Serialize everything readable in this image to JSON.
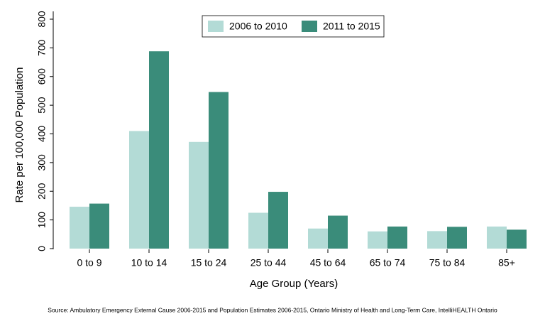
{
  "chart_data": {
    "type": "bar",
    "x_label": "Age Group (Years)",
    "y_label": "Rate per 100,000 Population",
    "source": "Source: Ambulatory Emergency External Cause 2006-2015 and Population Estimates 2006-2015, Ontario Ministry of Health and Long-Term Care, IntelliHEALTH Ontario",
    "categories": [
      "0 to 9",
      "10 to 14",
      "15 to 24",
      "25 to 44",
      "45 to 64",
      "65 to 74",
      "75 to 84",
      "85+"
    ],
    "series": [
      {
        "name": "2006 to 2010",
        "color": "#b3dbd6",
        "values": [
          146,
          410,
          372,
          125,
          70,
          60,
          61,
          77
        ]
      },
      {
        "name": "2011 to 2015",
        "color": "#3a8c7a",
        "values": [
          157,
          688,
          546,
          198,
          115,
          77,
          76,
          66
        ]
      }
    ],
    "ylim": [
      0,
      800
    ],
    "yticks": [
      0,
      100,
      200,
      300,
      400,
      500,
      600,
      700,
      800
    ],
    "grid": false,
    "legend": "top"
  }
}
